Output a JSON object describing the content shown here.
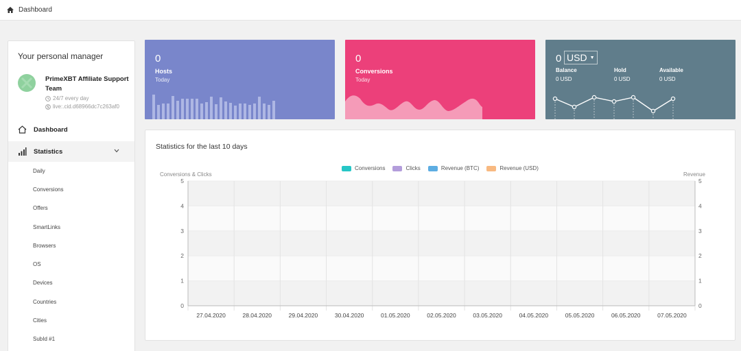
{
  "breadcrumb": {
    "label": "Dashboard"
  },
  "manager": {
    "heading": "Your personal manager",
    "name": "PrimeXBT Affiliate Support Team",
    "availability": "24/7 every day",
    "contact": "live:.cid.d68966dc7c263af0"
  },
  "nav": {
    "dashboard": "Dashboard",
    "statistics": "Statistics",
    "sub_items": [
      "Daily",
      "Conversions",
      "Offers",
      "SmartLinks",
      "Browsers",
      "OS",
      "Devices",
      "Countries",
      "Cities",
      "SubId #1"
    ]
  },
  "cards": {
    "hosts": {
      "value": "0",
      "label": "Hosts",
      "sub": "Today",
      "color": "#7986cb"
    },
    "conversions": {
      "value": "0",
      "label": "Conversions",
      "sub": "Today",
      "color": "#ec407a"
    },
    "balance": {
      "value": "0",
      "currency": "USD",
      "color": "#607d8b",
      "balance_label": "Balance",
      "balance_value": "0 USD",
      "hold_label": "Hold",
      "hold_value": "0 USD",
      "available_label": "Available",
      "available_value": "0 USD"
    }
  },
  "stats": {
    "title": "Statistics for the last 10 days",
    "left_axis_title": "Conversions & Clicks",
    "right_axis_title": "Revenue"
  },
  "chart_data": {
    "type": "bar",
    "categories": [
      "27.04.2020",
      "28.04.2020",
      "29.04.2020",
      "30.04.2020",
      "01.05.2020",
      "02.05.2020",
      "03.05.2020",
      "04.05.2020",
      "05.05.2020",
      "06.05.2020",
      "07.05.2020"
    ],
    "series": [
      {
        "name": "Conversions",
        "color": "#26c6c6",
        "values": [
          0,
          0,
          0,
          0,
          0,
          0,
          0,
          0,
          0,
          0,
          0
        ]
      },
      {
        "name": "Clicks",
        "color": "#b39ddb",
        "values": [
          0,
          0,
          0,
          0,
          0,
          0,
          0,
          0,
          0,
          0,
          0
        ]
      },
      {
        "name": "Revenue (BTC)",
        "color": "#5dade2",
        "values": [
          0,
          0,
          0,
          0,
          0,
          0,
          0,
          0,
          0,
          0,
          0
        ]
      },
      {
        "name": "Revenue (USD)",
        "color": "#f8b981",
        "values": [
          0,
          0,
          0,
          0,
          0,
          0,
          0,
          0,
          0,
          0,
          0
        ]
      }
    ],
    "ylabel": "Conversions & Clicks",
    "y2label": "Revenue",
    "ylim": [
      0,
      5
    ],
    "y2lim": [
      0,
      5
    ],
    "yticks": [
      0,
      1,
      2,
      3,
      4,
      5
    ],
    "grid": true,
    "legend": "top-center"
  }
}
